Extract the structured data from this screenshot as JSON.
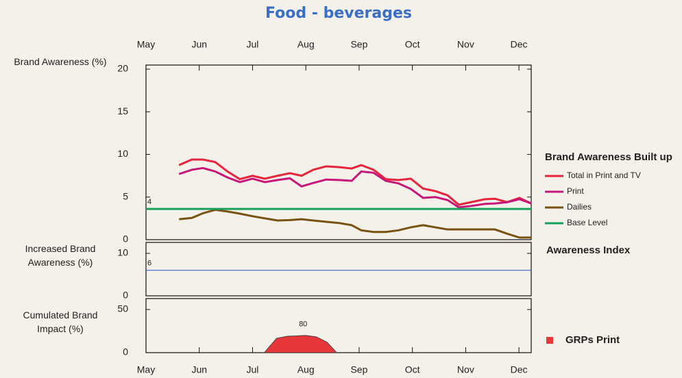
{
  "chart_data": [
    {
      "type": "line",
      "title": "Food - beverages",
      "y_label": "Brand Awareness (%)",
      "legend_title": "Brand Awareness Built up",
      "xlim": [
        0,
        7.23
      ],
      "xticks": [
        {
          "value": 0,
          "label": "May"
        },
        {
          "value": 1,
          "label": "Jun"
        },
        {
          "value": 2,
          "label": "Jul"
        },
        {
          "value": 3,
          "label": "Aug"
        },
        {
          "value": 4,
          "label": "Sep"
        },
        {
          "value": 5,
          "label": "Oct"
        },
        {
          "value": 6,
          "label": "Nov"
        },
        {
          "value": 7,
          "label": "Dec"
        }
      ],
      "ylim": [
        0,
        20
      ],
      "yticks": [
        0,
        5,
        10,
        15,
        20
      ],
      "x": [
        0.62,
        0.86,
        1.07,
        1.3,
        1.53,
        1.76,
        2.0,
        2.23,
        2.47,
        2.7,
        2.92,
        3.14,
        3.38,
        3.63,
        3.86,
        4.04,
        4.27,
        4.5,
        4.74,
        4.97,
        5.2,
        5.43,
        5.66,
        5.87,
        6.1,
        6.36,
        6.55,
        6.78,
        7.01,
        7.23
      ],
      "series": [
        {
          "name": "Total in Print and TV",
          "color": "#e8243a",
          "values": [
            8.75,
            9.4,
            9.4,
            9.1,
            8.0,
            7.1,
            7.5,
            7.15,
            7.5,
            7.8,
            7.5,
            8.2,
            8.6,
            8.5,
            8.35,
            8.75,
            8.2,
            7.1,
            7.0,
            7.15,
            6.0,
            5.7,
            5.2,
            4.1,
            4.4,
            4.75,
            4.8,
            4.4,
            4.9,
            4.25
          ]
        },
        {
          "name": "Print",
          "color": "#c8157a",
          "values": [
            7.7,
            8.2,
            8.4,
            8.0,
            7.3,
            6.75,
            7.15,
            6.75,
            7.0,
            7.2,
            6.25,
            6.65,
            7.05,
            7.0,
            6.9,
            8.0,
            7.85,
            6.9,
            6.6,
            5.95,
            4.9,
            5.0,
            4.65,
            3.8,
            3.95,
            4.2,
            4.25,
            4.4,
            4.75,
            4.25
          ]
        },
        {
          "name": "Dailies",
          "color": "#7a5210",
          "values": [
            2.4,
            2.55,
            3.1,
            3.5,
            3.3,
            3.05,
            2.75,
            2.5,
            2.25,
            2.3,
            2.4,
            2.25,
            2.1,
            1.95,
            1.7,
            1.1,
            0.9,
            0.9,
            1.1,
            1.45,
            1.7,
            1.45,
            1.2,
            1.2,
            1.2,
            1.2,
            1.2,
            0.7,
            0.25,
            0.25
          ]
        },
        {
          "name": "Base Level",
          "color": "#18a05a",
          "value": 3.6,
          "value_label": "4"
        }
      ]
    },
    {
      "type": "hline",
      "y_label": "Increased Brand Awareness (%)",
      "xlim": [
        0,
        7.23
      ],
      "ylim": [
        0,
        10
      ],
      "yticks": [
        0,
        10
      ],
      "series": [
        {
          "name": "Awareness Index",
          "color": "#2a52be",
          "value": 6
        }
      ]
    },
    {
      "type": "area",
      "y_label": "Cumulated Brand Impact (%)",
      "annotation": "80",
      "xlim": [
        0,
        7.23
      ],
      "xticks": [
        {
          "value": 0,
          "label": "May"
        },
        {
          "value": 1,
          "label": "Jun"
        },
        {
          "value": 2,
          "label": "Jul"
        },
        {
          "value": 3,
          "label": "Aug"
        },
        {
          "value": 4,
          "label": "Sep"
        },
        {
          "value": 5,
          "label": "Oct"
        },
        {
          "value": 6,
          "label": "Nov"
        },
        {
          "value": 7,
          "label": "Dec"
        }
      ],
      "ylim": [
        0,
        50
      ],
      "yticks": [
        0,
        50
      ],
      "series": [
        {
          "name": "GRPs Print",
          "color": "#e8373a",
          "x": [
            2.22,
            2.45,
            2.65,
            3.0,
            3.2,
            3.4,
            3.58
          ],
          "values": [
            0,
            16.7,
            19,
            20,
            18.3,
            12,
            0
          ]
        }
      ]
    }
  ]
}
